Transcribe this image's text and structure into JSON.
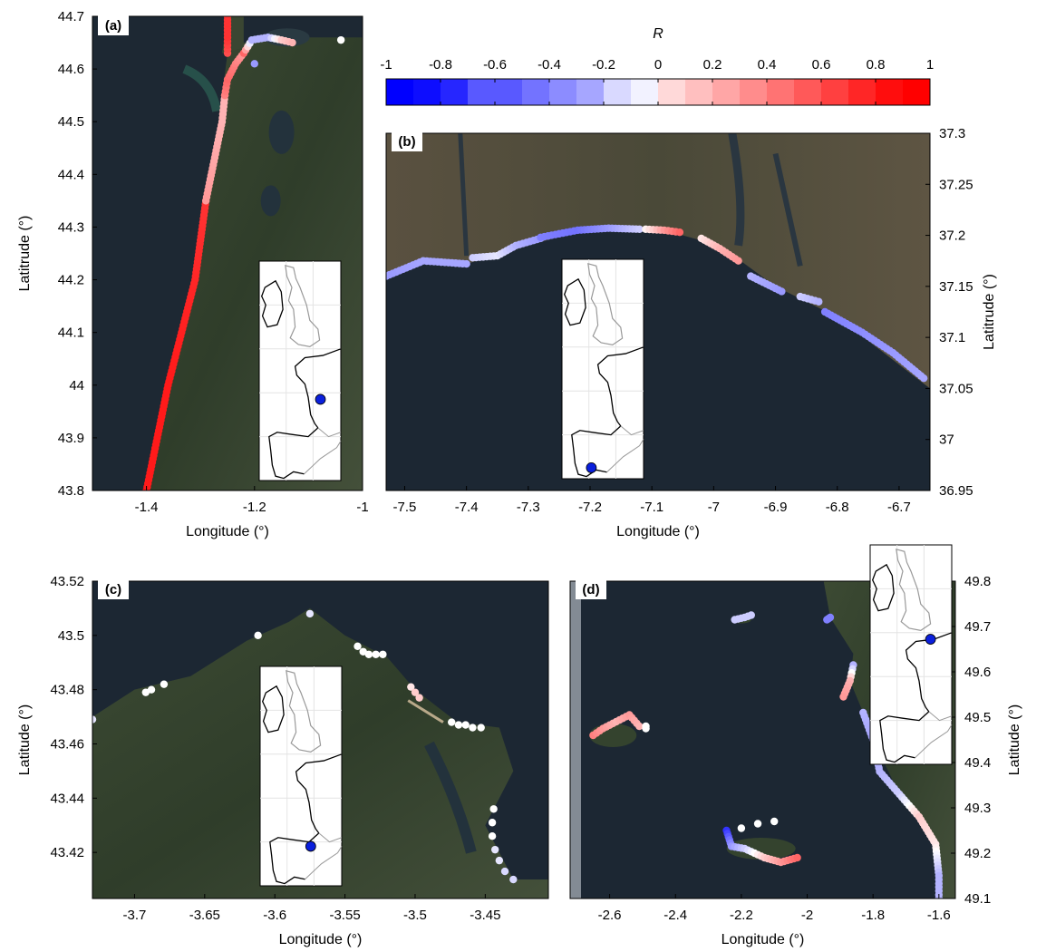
{
  "colorbar": {
    "title": "R",
    "ticks": [
      -1,
      -0.8,
      -0.6,
      -0.4,
      -0.2,
      0,
      0.2,
      0.4,
      0.6,
      0.8,
      1
    ],
    "tick_labels": [
      "-1",
      "-0.8",
      "-0.6",
      "-0.4",
      "-0.2",
      "0",
      "0.2",
      "0.4",
      "0.6",
      "0.8",
      "1"
    ],
    "low_color": "#0000ff",
    "mid_color": "#ffffff",
    "high_color": "#ff0000"
  },
  "chart_data": [
    {
      "type": "scatter",
      "label": "(a)",
      "xlabel": "Longitude (°)",
      "ylabel": "Latitrude (°)",
      "xlim": [
        -1.5,
        -1.0
      ],
      "ylim": [
        43.8,
        44.7
      ],
      "xticks": [
        -1.4,
        -1.2,
        -1
      ],
      "xtick_labels": [
        "-1.4",
        "-1.2",
        "-1"
      ],
      "yticks": [
        43.8,
        43.9,
        44,
        44.1,
        44.2,
        44.3,
        44.4,
        44.5,
        44.6,
        44.7
      ],
      "ytick_labels": [
        "43.8",
        "43.9",
        "44",
        "44.1",
        "44.2",
        "44.3",
        "44.4",
        "44.5",
        "44.6",
        "44.7"
      ],
      "segments": [
        {
          "points": [
            [
              -1.4,
              43.8
            ],
            [
              -1.36,
              44.0
            ],
            [
              -1.31,
              44.2
            ],
            [
              -1.29,
              44.35
            ]
          ],
          "r": [
            0.9,
            0.9,
            0.85,
            0.8
          ]
        },
        {
          "points": [
            [
              -1.29,
              44.35
            ],
            [
              -1.26,
              44.5
            ],
            [
              -1.255,
              44.55
            ]
          ],
          "r": [
            0.4,
            0.3,
            0.3
          ]
        },
        {
          "points": [
            [
              -1.255,
              44.55
            ],
            [
              -1.25,
              44.58
            ],
            [
              -1.235,
              44.61
            ],
            [
              -1.22,
              44.63
            ]
          ],
          "r": [
            0.5,
            0.6,
            0.5,
            0.4
          ]
        },
        {
          "points": [
            [
              -1.22,
              44.63
            ],
            [
              -1.205,
              44.655
            ],
            [
              -1.175,
              44.66
            ],
            [
              -1.15,
              44.655
            ],
            [
              -1.13,
              44.65
            ]
          ],
          "r": [
            0.6,
            -0.3,
            -0.3,
            0.2,
            0.3
          ]
        },
        {
          "points": [
            [
              -1.25,
              44.63
            ],
            [
              -1.25,
              44.66
            ],
            [
              -1.25,
              44.7
            ]
          ],
          "r": [
            0.7,
            0.8,
            0.8
          ]
        }
      ],
      "points": [
        {
          "lon": -1.04,
          "lat": 44.655,
          "r": 0.0
        },
        {
          "lon": -1.2,
          "lat": 44.61,
          "r": -0.4
        }
      ],
      "inset_marker": {
        "lon": -1.06,
        "lat": 46.3
      }
    },
    {
      "type": "scatter",
      "label": "(b)",
      "xlabel": "Longitude (°)",
      "ylabel": "Latitrude (°)",
      "xlim": [
        -7.53,
        -6.65
      ],
      "ylim": [
        36.95,
        37.3
      ],
      "xticks": [
        -7.5,
        -7.4,
        -7.3,
        -7.2,
        -7.1,
        -7,
        -6.9,
        -6.8,
        -6.7
      ],
      "xtick_labels": [
        "-7.5",
        "-7.4",
        "-7.3",
        "-7.2",
        "-7.1",
        "-7",
        "-6.9",
        "-6.8",
        "-6.7"
      ],
      "yticks": [
        36.95,
        37,
        37.05,
        37.1,
        37.15,
        37.2,
        37.25,
        37.3
      ],
      "ytick_labels": [
        "36.95",
        "37",
        "37.05",
        "37.1",
        "37.15",
        "37.2",
        "37.25",
        "37.3"
      ],
      "segments": [
        {
          "points": [
            [
              -7.53,
              37.16
            ],
            [
              -7.47,
              37.175
            ],
            [
              -7.4,
              37.172
            ]
          ],
          "r": [
            -0.4,
            -0.35,
            -0.35
          ]
        },
        {
          "points": [
            [
              -7.39,
              37.178
            ],
            [
              -7.35,
              37.18
            ],
            [
              -7.32,
              37.19
            ],
            [
              -7.28,
              37.197
            ]
          ],
          "r": [
            -0.2,
            -0.1,
            -0.3,
            -0.4
          ]
        },
        {
          "points": [
            [
              -7.28,
              37.198
            ],
            [
              -7.22,
              37.205
            ],
            [
              -7.17,
              37.207
            ],
            [
              -7.12,
              37.206
            ]
          ],
          "r": [
            -0.5,
            -0.55,
            -0.4,
            -0.2
          ]
        },
        {
          "points": [
            [
              -7.11,
              37.206
            ],
            [
              -7.08,
              37.205
            ],
            [
              -7.055,
              37.203
            ]
          ],
          "r": [
            0.05,
            0.4,
            0.6
          ]
        },
        {
          "points": [
            [
              -7.02,
              37.197
            ],
            [
              -6.99,
              37.187
            ],
            [
              -6.96,
              37.175
            ]
          ],
          "r": [
            0.1,
            0.3,
            0.4
          ]
        },
        {
          "points": [
            [
              -6.94,
              37.16
            ],
            [
              -6.89,
              37.145
            ]
          ],
          "r": [
            -0.3,
            -0.4
          ]
        },
        {
          "points": [
            [
              -6.86,
              37.14
            ],
            [
              -6.83,
              37.135
            ]
          ],
          "r": [
            -0.2,
            -0.3
          ]
        },
        {
          "points": [
            [
              -6.82,
              37.125
            ],
            [
              -6.76,
              37.105
            ],
            [
              -6.71,
              37.085
            ],
            [
              -6.66,
              37.06
            ]
          ],
          "r": [
            -0.5,
            -0.45,
            -0.4,
            -0.35
          ]
        }
      ],
      "points": [],
      "inset_marker": {
        "lon": -7.2,
        "lat": 37.2
      }
    },
    {
      "type": "scatter",
      "label": "(c)",
      "xlabel": "Longitude (°)",
      "ylabel": "Latitude (°)",
      "xlim": [
        -3.73,
        -3.405
      ],
      "ylim": [
        43.403,
        43.52
      ],
      "xticks": [
        -3.7,
        -3.65,
        -3.6,
        -3.55,
        -3.5,
        -3.45
      ],
      "xtick_labels": [
        "-3.7",
        "-3.65",
        "-3.6",
        "-3.55",
        "-3.5",
        "-3.45"
      ],
      "yticks": [
        43.42,
        43.44,
        43.46,
        43.48,
        43.5,
        43.52
      ],
      "ytick_labels": [
        "43.42",
        "43.44",
        "43.46",
        "43.48",
        "43.5",
        "43.52"
      ],
      "segments": [],
      "points": [
        {
          "lon": -3.73,
          "lat": 43.469,
          "r": -0.1
        },
        {
          "lon": -3.692,
          "lat": 43.479,
          "r": 0.0
        },
        {
          "lon": -3.688,
          "lat": 43.48,
          "r": 0.0
        },
        {
          "lon": -3.679,
          "lat": 43.482,
          "r": 0.0
        },
        {
          "lon": -3.612,
          "lat": 43.5,
          "r": 0.0
        },
        {
          "lon": -3.575,
          "lat": 43.508,
          "r": -0.1
        },
        {
          "lon": -3.541,
          "lat": 43.496,
          "r": 0.0
        },
        {
          "lon": -3.537,
          "lat": 43.494,
          "r": 0.0
        },
        {
          "lon": -3.533,
          "lat": 43.493,
          "r": 0.0
        },
        {
          "lon": -3.528,
          "lat": 43.493,
          "r": 0.0
        },
        {
          "lon": -3.523,
          "lat": 43.493,
          "r": 0.0
        },
        {
          "lon": -3.503,
          "lat": 43.481,
          "r": 0.1
        },
        {
          "lon": -3.5,
          "lat": 43.479,
          "r": 0.2
        },
        {
          "lon": -3.497,
          "lat": 43.477,
          "r": 0.2
        },
        {
          "lon": -3.474,
          "lat": 43.468,
          "r": 0.0
        },
        {
          "lon": -3.469,
          "lat": 43.467,
          "r": 0.0
        },
        {
          "lon": -3.464,
          "lat": 43.467,
          "r": 0.0
        },
        {
          "lon": -3.459,
          "lat": 43.466,
          "r": 0.0
        },
        {
          "lon": -3.453,
          "lat": 43.466,
          "r": 0.0
        },
        {
          "lon": -3.444,
          "lat": 43.436,
          "r": 0.0
        },
        {
          "lon": -3.445,
          "lat": 43.431,
          "r": 0.0
        },
        {
          "lon": -3.445,
          "lat": 43.426,
          "r": 0.0
        },
        {
          "lon": -3.443,
          "lat": 43.421,
          "r": -0.1
        },
        {
          "lon": -3.44,
          "lat": 43.417,
          "r": -0.1
        },
        {
          "lon": -3.436,
          "lat": 43.413,
          "r": -0.15
        },
        {
          "lon": -3.43,
          "lat": 43.41,
          "r": -0.15
        }
      ],
      "inset_marker": {
        "lon": -3.58,
        "lat": 43.46
      }
    },
    {
      "type": "scatter",
      "label": "(d)",
      "xlabel": "Longitude (°)",
      "ylabel": "Latitude (°)",
      "xlim": [
        -2.72,
        -1.55
      ],
      "ylim": [
        49.1,
        49.8
      ],
      "xticks": [
        -2.6,
        -2.4,
        -2.2,
        -2,
        -1.8,
        -1.6
      ],
      "xtick_labels": [
        "-2.6",
        "-2.4",
        "-2.2",
        "-2",
        "-1.8",
        "-1.6"
      ],
      "yticks": [
        49.1,
        49.2,
        49.3,
        49.4,
        49.5,
        49.6,
        49.7,
        49.8
      ],
      "ytick_labels": [
        "49.1",
        "49.2",
        "49.3",
        "49.4",
        "49.5",
        "49.6",
        "49.7",
        "49.8"
      ],
      "segments": [
        {
          "points": [
            [
              -2.65,
              49.46
            ],
            [
              -2.62,
              49.475
            ],
            [
              -2.58,
              49.49
            ],
            [
              -2.54,
              49.505
            ],
            [
              -2.51,
              49.48
            ]
          ],
          "r": [
            0.5,
            0.4,
            0.3,
            0.4,
            0.3
          ]
        },
        {
          "points": [
            [
              -2.22,
              49.715
            ],
            [
              -2.19,
              49.72
            ],
            [
              -2.17,
              49.725
            ]
          ],
          "r": [
            -0.2,
            -0.2,
            -0.2
          ]
        },
        {
          "points": [
            [
              -1.94,
              49.715
            ],
            [
              -1.93,
              49.72
            ]
          ],
          "r": [
            -0.5,
            -0.5
          ]
        },
        {
          "points": [
            [
              -1.86,
              49.615
            ],
            [
              -1.87,
              49.58
            ],
            [
              -1.89,
              49.545
            ]
          ],
          "r": [
            -0.3,
            0.3,
            0.4
          ]
        },
        {
          "points": [
            [
              -1.83,
              49.51
            ],
            [
              -1.8,
              49.45
            ],
            [
              -1.78,
              49.38
            ],
            [
              -1.72,
              49.33
            ],
            [
              -1.66,
              49.28
            ],
            [
              -1.61,
              49.22
            ],
            [
              -1.6,
              49.15
            ],
            [
              -1.6,
              49.1
            ]
          ],
          "r": [
            -0.3,
            -0.35,
            -0.3,
            -0.2,
            0.2,
            0.1,
            -0.3,
            -0.3
          ]
        },
        {
          "points": [
            [
              -2.245,
              49.25
            ],
            [
              -2.23,
              49.215
            ],
            [
              -2.19,
              49.21
            ],
            [
              -2.13,
              49.19
            ],
            [
              -2.08,
              49.18
            ],
            [
              -2.03,
              49.19
            ]
          ],
          "r": [
            -0.8,
            -0.4,
            -0.2,
            0.2,
            0.4,
            0.6
          ]
        }
      ],
      "points": [
        {
          "lon": -2.49,
          "lat": 49.48,
          "r": 0.0
        },
        {
          "lon": -2.49,
          "lat": 49.475,
          "r": 0.0
        },
        {
          "lon": -2.15,
          "lat": 49.265,
          "r": 0.0
        },
        {
          "lon": -2.1,
          "lat": 49.27,
          "r": 0.0
        },
        {
          "lon": -2.2,
          "lat": 49.255,
          "r": 0.0
        }
      ],
      "inset_marker": {
        "lon": -1.7,
        "lat": 49.5
      }
    }
  ]
}
